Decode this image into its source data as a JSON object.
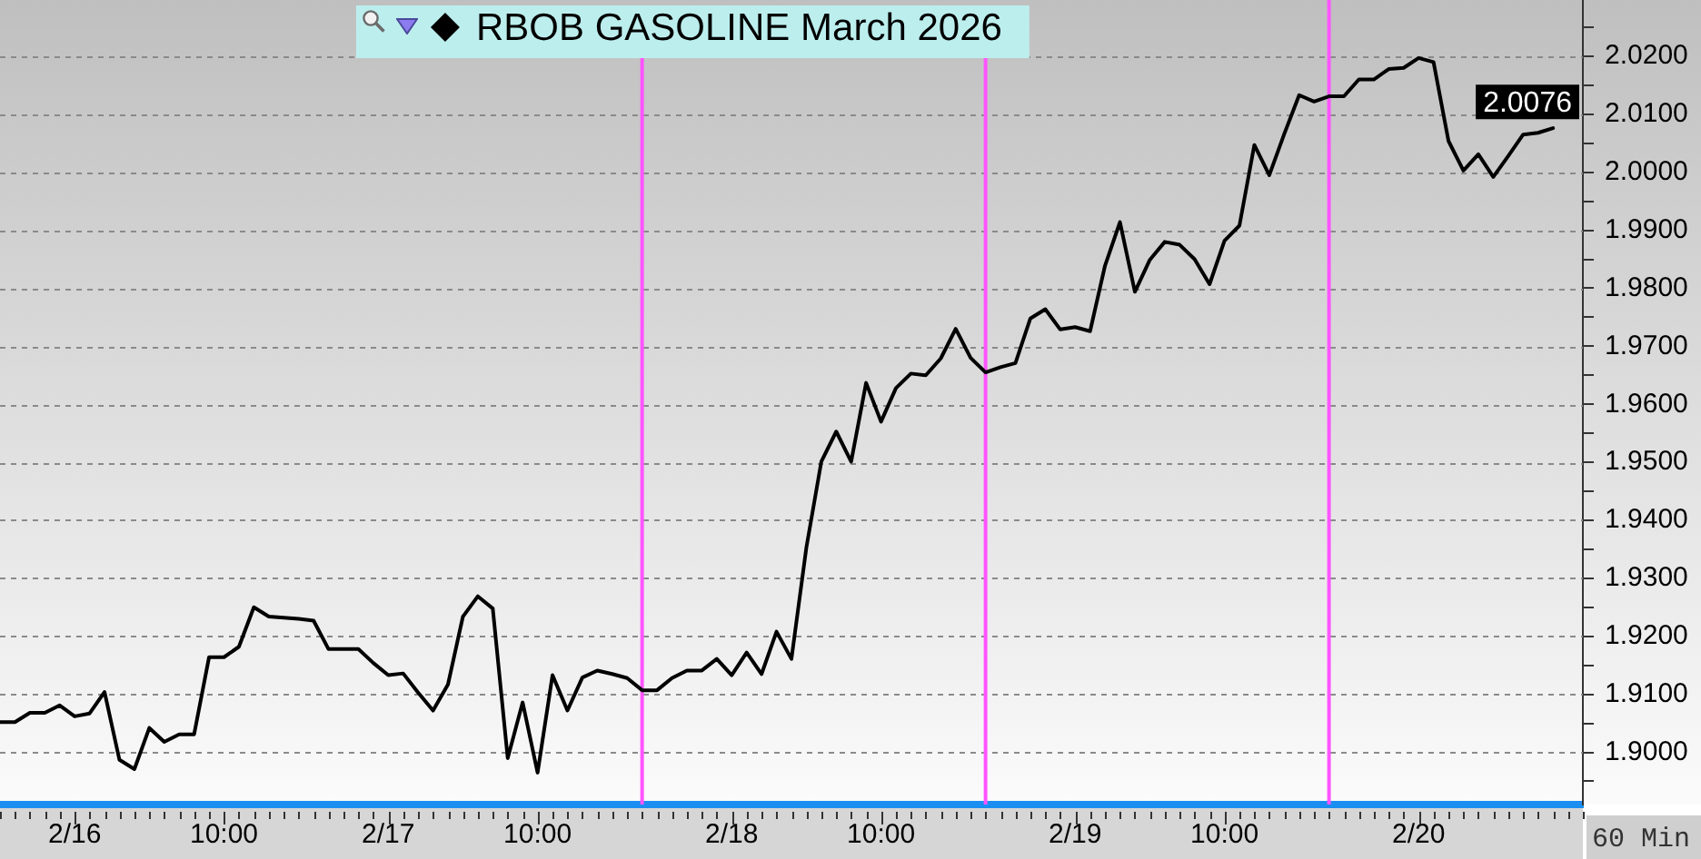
{
  "chart_data": {
    "type": "line",
    "categories": [
      null,
      null,
      null,
      null,
      null,
      "2/16",
      null,
      null,
      null,
      null,
      null,
      null,
      null,
      null,
      null,
      "10:00",
      null,
      null,
      null,
      null,
      null,
      null,
      null,
      null,
      null,
      null,
      "2/17",
      null,
      null,
      null,
      null,
      null,
      null,
      null,
      null,
      null,
      "10:00",
      null,
      null,
      null,
      null,
      null,
      null,
      null,
      null,
      null,
      null,
      null,
      null,
      "2/18",
      null,
      null,
      null,
      null,
      null,
      null,
      null,
      null,
      null,
      "10:00",
      null,
      null,
      null,
      null,
      null,
      null,
      null,
      null,
      null,
      null,
      null,
      null,
      "2/19",
      null,
      null,
      null,
      null,
      null,
      null,
      null,
      null,
      null,
      "10:00",
      null,
      null,
      null,
      null,
      null,
      null,
      null,
      null,
      null,
      null,
      null,
      null,
      "2/20",
      null,
      null,
      null,
      null,
      null,
      null,
      null,
      null,
      null,
      null,
      null
    ],
    "series": [
      {
        "name": "RBOB GASOLINE March 2026",
        "color": "#000000",
        "values": [
          1.9052,
          1.9052,
          1.9068,
          1.9068,
          1.9081,
          1.9062,
          1.9067,
          1.9104,
          1.8987,
          1.8971,
          1.9042,
          1.9018,
          1.9031,
          1.9031,
          1.9164,
          1.9164,
          1.9182,
          1.925,
          1.9234,
          1.9232,
          1.923,
          1.9227,
          1.9178,
          1.9178,
          1.9178,
          1.9154,
          1.9133,
          1.9136,
          1.9103,
          1.9072,
          1.9117,
          1.9234,
          1.9269,
          1.9248,
          1.899,
          1.9086,
          1.8965,
          1.9133,
          1.9072,
          1.9129,
          1.9141,
          1.9135,
          1.9128,
          1.9107,
          1.9107,
          1.9128,
          1.9141,
          1.9141,
          1.9161,
          1.9133,
          1.9172,
          1.9135,
          1.9208,
          1.9161,
          1.9353,
          1.9501,
          1.9553,
          1.9501,
          1.9637,
          1.957,
          1.9628,
          1.9653,
          1.965,
          1.9679,
          1.973,
          1.968,
          1.9655,
          1.9664,
          1.9671,
          1.9748,
          1.9764,
          1.9729,
          1.9733,
          1.9726,
          1.9839,
          1.9914,
          1.9794,
          1.9849,
          1.988,
          1.9875,
          1.985,
          1.9807,
          1.9882,
          1.9908,
          2.0047,
          1.9995,
          2.0066,
          2.0133,
          2.0122,
          2.0131,
          2.0131,
          2.016,
          2.016,
          2.0178,
          2.018,
          2.0197,
          2.019,
          2.0054,
          2.0003,
          2.0031,
          1.9992,
          2.0028,
          2.0065,
          2.0068,
          2.0076,
          null,
          null
        ]
      }
    ],
    "ylim": [
      1.891,
      2.0297
    ],
    "yticks": [
      {
        "value": 1.895,
        "label": null
      },
      {
        "value": 1.9,
        "label": "1.9000"
      },
      {
        "value": 1.905,
        "label": null
      },
      {
        "value": 1.91,
        "label": "1.9100"
      },
      {
        "value": 1.915,
        "label": null
      },
      {
        "value": 1.92,
        "label": "1.9200"
      },
      {
        "value": 1.925,
        "label": null
      },
      {
        "value": 1.93,
        "label": "1.9300"
      },
      {
        "value": 1.935,
        "label": null
      },
      {
        "value": 1.94,
        "label": "1.9400"
      },
      {
        "value": 1.945,
        "label": null
      },
      {
        "value": 1.95,
        "label": "1.9500"
      },
      {
        "value": 1.955,
        "label": null
      },
      {
        "value": 1.96,
        "label": "1.9600"
      },
      {
        "value": 1.965,
        "label": null
      },
      {
        "value": 1.97,
        "label": "1.9700"
      },
      {
        "value": 1.975,
        "label": null
      },
      {
        "value": 1.98,
        "label": "1.9800"
      },
      {
        "value": 1.985,
        "label": null
      },
      {
        "value": 1.99,
        "label": "1.9900"
      },
      {
        "value": 1.995,
        "label": null
      },
      {
        "value": 2.0,
        "label": "2.0000"
      },
      {
        "value": 2.005,
        "label": null
      },
      {
        "value": 2.01,
        "label": "2.0100"
      },
      {
        "value": 2.015,
        "label": null
      },
      {
        "value": 2.02,
        "label": "2.0200"
      },
      {
        "value": 2.025,
        "label": null
      }
    ],
    "grid": "y",
    "legend": "top",
    "marker": "none",
    "line_style": "solid",
    "annotations": [
      {
        "text": "2.0076",
        "y": 2.0076
      },
      "60 Min"
    ]
  }
}
